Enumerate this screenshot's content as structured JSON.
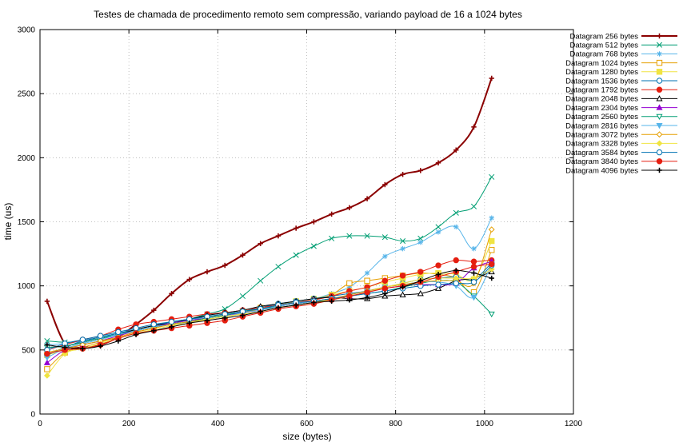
{
  "chart_data": {
    "type": "line",
    "title": "Testes de chamada de procedimento remoto sem compressão, variando payload de 16 a 1024 bytes",
    "xlabel": "size (bytes)",
    "ylabel": "time (us)",
    "xlim": [
      0,
      1200
    ],
    "ylim": [
      0,
      3000
    ],
    "xticks": [
      0,
      200,
      400,
      600,
      800,
      1000,
      1200
    ],
    "yticks": [
      0,
      500,
      1000,
      1500,
      2000,
      2500,
      3000
    ],
    "grid": true,
    "legend_position": "right",
    "x": [
      16,
      56,
      96,
      136,
      176,
      216,
      256,
      296,
      336,
      376,
      416,
      456,
      496,
      536,
      576,
      616,
      656,
      696,
      736,
      776,
      816,
      856,
      896,
      936,
      976,
      1016
    ],
    "series": [
      {
        "name": "Datagram 256 bytes",
        "color": "#8b0000",
        "marker": "plus",
        "width": 2,
        "values": [
          880,
          550,
          520,
          540,
          600,
          700,
          810,
          940,
          1050,
          1110,
          1160,
          1240,
          1330,
          1390,
          1450,
          1500,
          1560,
          1610,
          1680,
          1790,
          1870,
          1900,
          1960,
          2060,
          2240,
          2620
        ]
      },
      {
        "name": "Datagram 512 bytes",
        "color": "#009e73",
        "marker": "x",
        "width": 1,
        "values": [
          570,
          560,
          570,
          600,
          630,
          650,
          680,
          700,
          740,
          780,
          820,
          920,
          1040,
          1150,
          1240,
          1310,
          1370,
          1390,
          1390,
          1380,
          1350,
          1370,
          1460,
          1570,
          1620,
          1850
        ]
      },
      {
        "name": "Datagram 768 bytes",
        "color": "#56b4e9",
        "marker": "asterisk",
        "width": 1,
        "values": [
          540,
          550,
          570,
          590,
          630,
          660,
          690,
          710,
          730,
          760,
          780,
          800,
          830,
          860,
          880,
          900,
          940,
          990,
          1100,
          1230,
          1290,
          1340,
          1420,
          1460,
          1290,
          1530
        ]
      },
      {
        "name": "Datagram 1024 bytes",
        "color": "#e69f00",
        "marker": "square-open",
        "width": 1,
        "values": [
          350,
          480,
          520,
          560,
          600,
          640,
          670,
          700,
          720,
          740,
          760,
          790,
          820,
          850,
          870,
          890,
          930,
          1020,
          1040,
          1060,
          1080,
          1100,
          1090,
          1060,
          950,
          1280
        ]
      },
      {
        "name": "Datagram 1280 bytes",
        "color": "#f0e442",
        "marker": "square",
        "width": 1,
        "values": [
          460,
          500,
          540,
          570,
          610,
          650,
          680,
          710,
          730,
          750,
          780,
          800,
          830,
          850,
          880,
          900,
          930,
          960,
          990,
          1030,
          1060,
          1090,
          1100,
          1090,
          1050,
          1350
        ]
      },
      {
        "name": "Datagram 1536 bytes",
        "color": "#0072b2",
        "marker": "circle-open",
        "width": 1,
        "values": [
          460,
          520,
          570,
          600,
          630,
          660,
          690,
          720,
          740,
          760,
          780,
          800,
          830,
          860,
          880,
          900,
          920,
          940,
          960,
          990,
          1020,
          1050,
          1060,
          1070,
          1050,
          1180
        ]
      },
      {
        "name": "Datagram 1792 bytes",
        "color": "#e51e10",
        "marker": "circle",
        "width": 1,
        "values": [
          500,
          540,
          580,
          610,
          660,
          700,
          720,
          740,
          760,
          780,
          790,
          810,
          830,
          850,
          870,
          890,
          920,
          960,
          990,
          1040,
          1080,
          1110,
          1160,
          1200,
          1190,
          1200
        ]
      },
      {
        "name": "Datagram 2048 bytes",
        "color": "#000000",
        "marker": "triangle-open",
        "width": 1,
        "values": [
          520,
          530,
          560,
          590,
          620,
          660,
          690,
          710,
          740,
          770,
          790,
          810,
          840,
          860,
          880,
          900,
          910,
          900,
          900,
          920,
          930,
          940,
          980,
          1040,
          1060,
          1110
        ]
      },
      {
        "name": "Datagram 2304 bytes",
        "color": "#9400d3",
        "marker": "triangle",
        "width": 1,
        "values": [
          400,
          500,
          540,
          570,
          610,
          650,
          680,
          710,
          730,
          750,
          770,
          790,
          810,
          840,
          860,
          880,
          900,
          920,
          950,
          980,
          1000,
          1010,
          1010,
          1020,
          1140,
          1190
        ]
      },
      {
        "name": "Datagram 2560 bytes",
        "color": "#009e73",
        "marker": "triangle-down-open",
        "width": 1,
        "values": [
          520,
          530,
          560,
          590,
          620,
          650,
          680,
          700,
          720,
          750,
          770,
          800,
          820,
          840,
          860,
          880,
          900,
          920,
          940,
          960,
          990,
          1020,
          1040,
          1030,
          920,
          780
        ]
      },
      {
        "name": "Datagram 2816 bytes",
        "color": "#56b4e9",
        "marker": "triangle-down",
        "width": 1,
        "values": [
          440,
          510,
          550,
          580,
          620,
          650,
          680,
          700,
          720,
          740,
          760,
          790,
          810,
          840,
          860,
          880,
          900,
          930,
          960,
          990,
          1010,
          1030,
          1030,
          1000,
          910,
          1170
        ]
      },
      {
        "name": "Datagram 3072 bytes",
        "color": "#e69f00",
        "marker": "diamond-open",
        "width": 1,
        "values": [
          480,
          510,
          540,
          570,
          600,
          640,
          670,
          700,
          720,
          740,
          760,
          780,
          800,
          830,
          850,
          870,
          900,
          930,
          960,
          990,
          1010,
          1030,
          1040,
          1040,
          1020,
          1440
        ]
      },
      {
        "name": "Datagram 3328 bytes",
        "color": "#f0e442",
        "marker": "diamond",
        "width": 1,
        "values": [
          300,
          470,
          510,
          550,
          590,
          630,
          660,
          690,
          710,
          740,
          760,
          780,
          800,
          830,
          850,
          870,
          890,
          920,
          950,
          990,
          1020,
          1050,
          1060,
          1060,
          1060,
          1130
        ]
      },
      {
        "name": "Datagram 3584 bytes",
        "color": "#0072b2",
        "marker": "circle-open",
        "width": 1,
        "values": [
          500,
          550,
          580,
          610,
          640,
          670,
          700,
          720,
          740,
          760,
          780,
          800,
          820,
          850,
          870,
          880,
          900,
          920,
          940,
          960,
          980,
          1000,
          1010,
          1020,
          1030,
          1160
        ]
      },
      {
        "name": "Datagram 3840 bytes",
        "color": "#e51e10",
        "marker": "circle",
        "width": 1,
        "values": [
          470,
          500,
          510,
          540,
          590,
          630,
          650,
          670,
          690,
          710,
          730,
          760,
          790,
          820,
          840,
          860,
          890,
          920,
          950,
          980,
          1000,
          1030,
          1070,
          1110,
          1150,
          1170
        ]
      },
      {
        "name": "Datagram 4096 bytes",
        "color": "#000000",
        "marker": "plus",
        "width": 1,
        "values": [
          540,
          520,
          510,
          530,
          570,
          620,
          650,
          680,
          710,
          730,
          750,
          770,
          800,
          830,
          850,
          870,
          880,
          890,
          910,
          940,
          990,
          1040,
          1090,
          1120,
          1100,
          1060
        ]
      }
    ]
  }
}
